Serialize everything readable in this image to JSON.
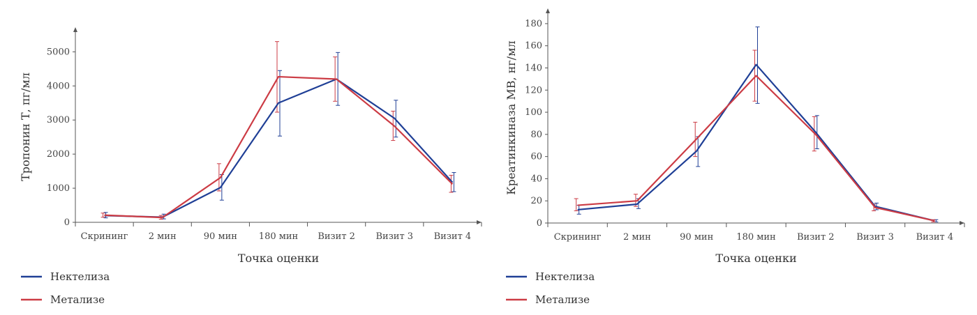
{
  "chart_data": [
    {
      "type": "line",
      "categories": [
        "Скрининг",
        "2 мин",
        "90 мин",
        "180 мин",
        "Визит 2",
        "Визит 3",
        "Визит 4"
      ],
      "xlabel": "Точка оценки",
      "ylabel": "Тропонин Т, пг/мл",
      "ylim": [
        0,
        5600
      ],
      "yticks": [
        0,
        1000,
        2000,
        3000,
        4000,
        5000
      ],
      "series": [
        {
          "name": "Нектелиза",
          "color": "#1f3f96",
          "values": [
            200,
            150,
            1020,
            3500,
            4200,
            3050,
            1170
          ],
          "err_low": [
            130,
            100,
            650,
            2530,
            3430,
            2500,
            900
          ],
          "err_high": [
            290,
            240,
            1400,
            4450,
            4980,
            3580,
            1460
          ]
        },
        {
          "name": "Метализе",
          "color": "#cc3b44",
          "values": [
            210,
            140,
            1310,
            4270,
            4200,
            2820,
            1120
          ],
          "err_low": [
            150,
            90,
            920,
            3230,
            3550,
            2400,
            880
          ],
          "err_high": [
            270,
            200,
            1720,
            5300,
            4850,
            3260,
            1380
          ]
        }
      ]
    },
    {
      "type": "line",
      "categories": [
        "Скрининг",
        "2 мин",
        "90 мин",
        "180 мин",
        "Визит 2",
        "Визит 3",
        "Визит 4"
      ],
      "xlabel": "Точка оценки",
      "ylabel": "Креатинкиназа МВ, нг/мл",
      "ylim": [
        0,
        190
      ],
      "yticks": [
        0,
        20,
        40,
        60,
        80,
        100,
        120,
        140,
        160,
        180
      ],
      "series": [
        {
          "name": "Нектелиза",
          "color": "#1f3f96",
          "values": [
            12,
            17,
            65,
            143,
            82,
            15,
            2
          ],
          "err_low": [
            8,
            13,
            51,
            108,
            67,
            12,
            1
          ],
          "err_high": [
            16,
            22,
            78,
            177,
            97,
            18,
            3
          ]
        },
        {
          "name": "Метализе",
          "color": "#cc3b44",
          "values": [
            16,
            20,
            76,
            133,
            80,
            14,
            2
          ],
          "err_low": [
            11,
            15,
            60,
            110,
            65,
            11,
            1
          ],
          "err_high": [
            22,
            26,
            91,
            156,
            96,
            17,
            3
          ]
        }
      ]
    }
  ],
  "legend": [
    {
      "label": "Нектелиза",
      "color": "#1f3f96"
    },
    {
      "label": "Метализе",
      "color": "#cc3b44"
    }
  ]
}
